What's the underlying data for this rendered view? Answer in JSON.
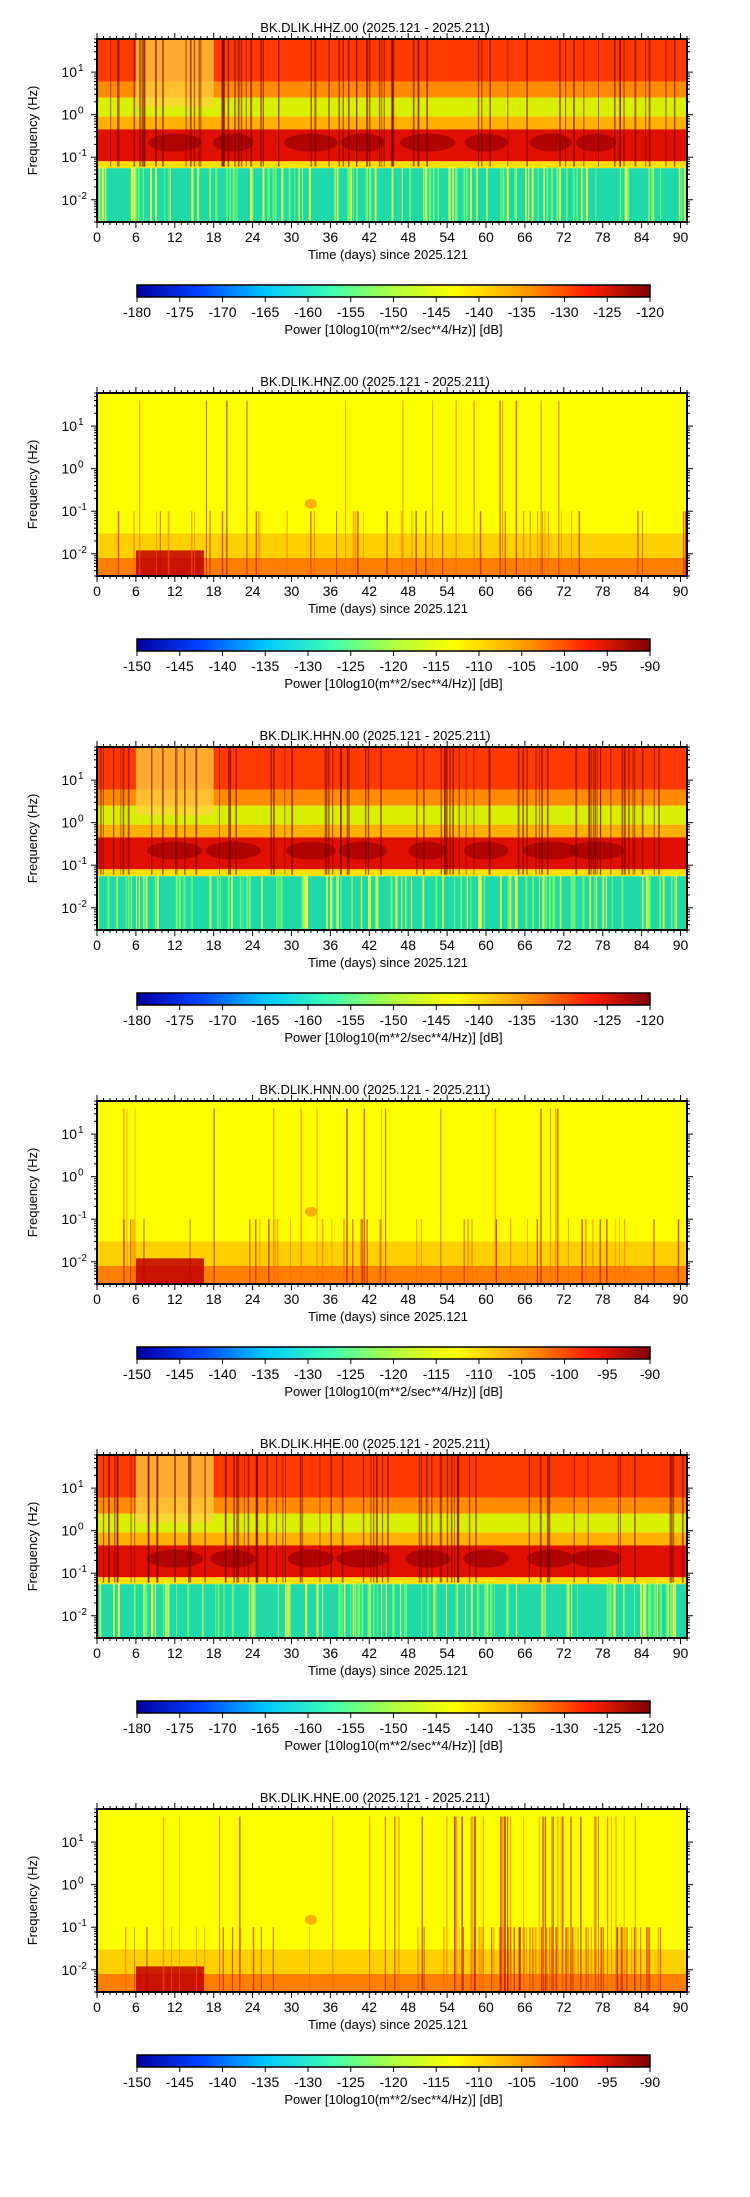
{
  "chart_data": [
    {
      "type": "heatmap",
      "title": "BK.DLIK.HHZ.00 (2025.121 - 2025.211)",
      "xlabel": "Time (days) since 2025.121",
      "ylabel": "Frequency (Hz)",
      "xlim": [
        0,
        91
      ],
      "ylim": [
        0.003,
        60
      ],
      "yscale": "log",
      "x_ticks": [
        0,
        6,
        12,
        18,
        24,
        30,
        36,
        42,
        48,
        54,
        60,
        66,
        72,
        78,
        84,
        90
      ],
      "y_ticks": [
        {
          "value": 10,
          "label": "10",
          "exp": "1"
        },
        {
          "value": 1,
          "label": "10",
          "exp": "0"
        },
        {
          "value": 0.1,
          "label": "10",
          "exp": "-1"
        },
        {
          "value": 0.01,
          "label": "10",
          "exp": "-2"
        }
      ],
      "colorbar": {
        "label": "Power [10log10(m**2/sec**4/Hz)] [dB]",
        "range": [
          -180,
          -120
        ],
        "ticks": [
          -180,
          -175,
          -170,
          -165,
          -160,
          -155,
          -150,
          -145,
          -140,
          -135,
          -130,
          -125,
          -120
        ]
      },
      "pattern": "broadband"
    },
    {
      "type": "heatmap",
      "title": "BK.DLIK.HNZ.00 (2025.121 - 2025.211)",
      "xlabel": "Time (days) since 2025.121",
      "ylabel": "Frequency (Hz)",
      "xlim": [
        0,
        91
      ],
      "ylim": [
        0.003,
        60
      ],
      "yscale": "log",
      "x_ticks": [
        0,
        6,
        12,
        18,
        24,
        30,
        36,
        42,
        48,
        54,
        60,
        66,
        72,
        78,
        84,
        90
      ],
      "y_ticks": [
        {
          "value": 10,
          "label": "10",
          "exp": "1"
        },
        {
          "value": 1,
          "label": "10",
          "exp": "0"
        },
        {
          "value": 0.1,
          "label": "10",
          "exp": "-1"
        },
        {
          "value": 0.01,
          "label": "10",
          "exp": "-2"
        }
      ],
      "colorbar": {
        "label": "Power [10log10(m**2/sec**4/Hz)] [dB]",
        "range": [
          -150,
          -90
        ],
        "ticks": [
          -150,
          -145,
          -140,
          -135,
          -130,
          -125,
          -120,
          -115,
          -110,
          -105,
          -100,
          -95,
          -90
        ]
      },
      "pattern": "strong"
    },
    {
      "type": "heatmap",
      "title": "BK.DLIK.HHN.00 (2025.121 - 2025.211)",
      "xlabel": "Time (days) since 2025.121",
      "ylabel": "Frequency (Hz)",
      "xlim": [
        0,
        91
      ],
      "ylim": [
        0.003,
        60
      ],
      "yscale": "log",
      "x_ticks": [
        0,
        6,
        12,
        18,
        24,
        30,
        36,
        42,
        48,
        54,
        60,
        66,
        72,
        78,
        84,
        90
      ],
      "y_ticks": [
        {
          "value": 10,
          "label": "10",
          "exp": "1"
        },
        {
          "value": 1,
          "label": "10",
          "exp": "0"
        },
        {
          "value": 0.1,
          "label": "10",
          "exp": "-1"
        },
        {
          "value": 0.01,
          "label": "10",
          "exp": "-2"
        }
      ],
      "colorbar": {
        "label": "Power [10log10(m**2/sec**4/Hz)] [dB]",
        "range": [
          -180,
          -120
        ],
        "ticks": [
          -180,
          -175,
          -170,
          -165,
          -160,
          -155,
          -150,
          -145,
          -140,
          -135,
          -130,
          -125,
          -120
        ]
      },
      "pattern": "broadband"
    },
    {
      "type": "heatmap",
      "title": "BK.DLIK.HNN.00 (2025.121 - 2025.211)",
      "xlabel": "Time (days) since 2025.121",
      "ylabel": "Frequency (Hz)",
      "xlim": [
        0,
        91
      ],
      "ylim": [
        0.003,
        60
      ],
      "yscale": "log",
      "x_ticks": [
        0,
        6,
        12,
        18,
        24,
        30,
        36,
        42,
        48,
        54,
        60,
        66,
        72,
        78,
        84,
        90
      ],
      "y_ticks": [
        {
          "value": 10,
          "label": "10",
          "exp": "1"
        },
        {
          "value": 1,
          "label": "10",
          "exp": "0"
        },
        {
          "value": 0.1,
          "label": "10",
          "exp": "-1"
        },
        {
          "value": 0.01,
          "label": "10",
          "exp": "-2"
        }
      ],
      "colorbar": {
        "label": "Power [10log10(m**2/sec**4/Hz)] [dB]",
        "range": [
          -150,
          -90
        ],
        "ticks": [
          -150,
          -145,
          -140,
          -135,
          -130,
          -125,
          -120,
          -115,
          -110,
          -105,
          -100,
          -95,
          -90
        ]
      },
      "pattern": "strong"
    },
    {
      "type": "heatmap",
      "title": "BK.DLIK.HHE.00 (2025.121 - 2025.211)",
      "xlabel": "Time (days) since 2025.121",
      "ylabel": "Frequency (Hz)",
      "xlim": [
        0,
        91
      ],
      "ylim": [
        0.003,
        60
      ],
      "yscale": "log",
      "x_ticks": [
        0,
        6,
        12,
        18,
        24,
        30,
        36,
        42,
        48,
        54,
        60,
        66,
        72,
        78,
        84,
        90
      ],
      "y_ticks": [
        {
          "value": 10,
          "label": "10",
          "exp": "1"
        },
        {
          "value": 1,
          "label": "10",
          "exp": "0"
        },
        {
          "value": 0.1,
          "label": "10",
          "exp": "-1"
        },
        {
          "value": 0.01,
          "label": "10",
          "exp": "-2"
        }
      ],
      "colorbar": {
        "label": "Power [10log10(m**2/sec**4/Hz)] [dB]",
        "range": [
          -180,
          -120
        ],
        "ticks": [
          -180,
          -175,
          -170,
          -165,
          -160,
          -155,
          -150,
          -145,
          -140,
          -135,
          -130,
          -125,
          -120
        ]
      },
      "pattern": "broadband"
    },
    {
      "type": "heatmap",
      "title": "BK.DLIK.HNE.00 (2025.121 - 2025.211)",
      "xlabel": "Time (days) since 2025.121",
      "ylabel": "Frequency (Hz)",
      "xlim": [
        0,
        91
      ],
      "ylim": [
        0.003,
        60
      ],
      "yscale": "log",
      "x_ticks": [
        0,
        6,
        12,
        18,
        24,
        30,
        36,
        42,
        48,
        54,
        60,
        66,
        72,
        78,
        84,
        90
      ],
      "y_ticks": [
        {
          "value": 10,
          "label": "10",
          "exp": "1"
        },
        {
          "value": 1,
          "label": "10",
          "exp": "0"
        },
        {
          "value": 0.1,
          "label": "10",
          "exp": "-1"
        },
        {
          "value": 0.01,
          "label": "10",
          "exp": "-2"
        }
      ],
      "colorbar": {
        "label": "Power [10log10(m**2/sec**4/Hz)] [dB]",
        "range": [
          -150,
          -90
        ],
        "ticks": [
          -150,
          -145,
          -140,
          -135,
          -130,
          -125,
          -120,
          -115,
          -110,
          -105,
          -100,
          -95,
          -90
        ]
      },
      "pattern": "strong-east"
    }
  ]
}
